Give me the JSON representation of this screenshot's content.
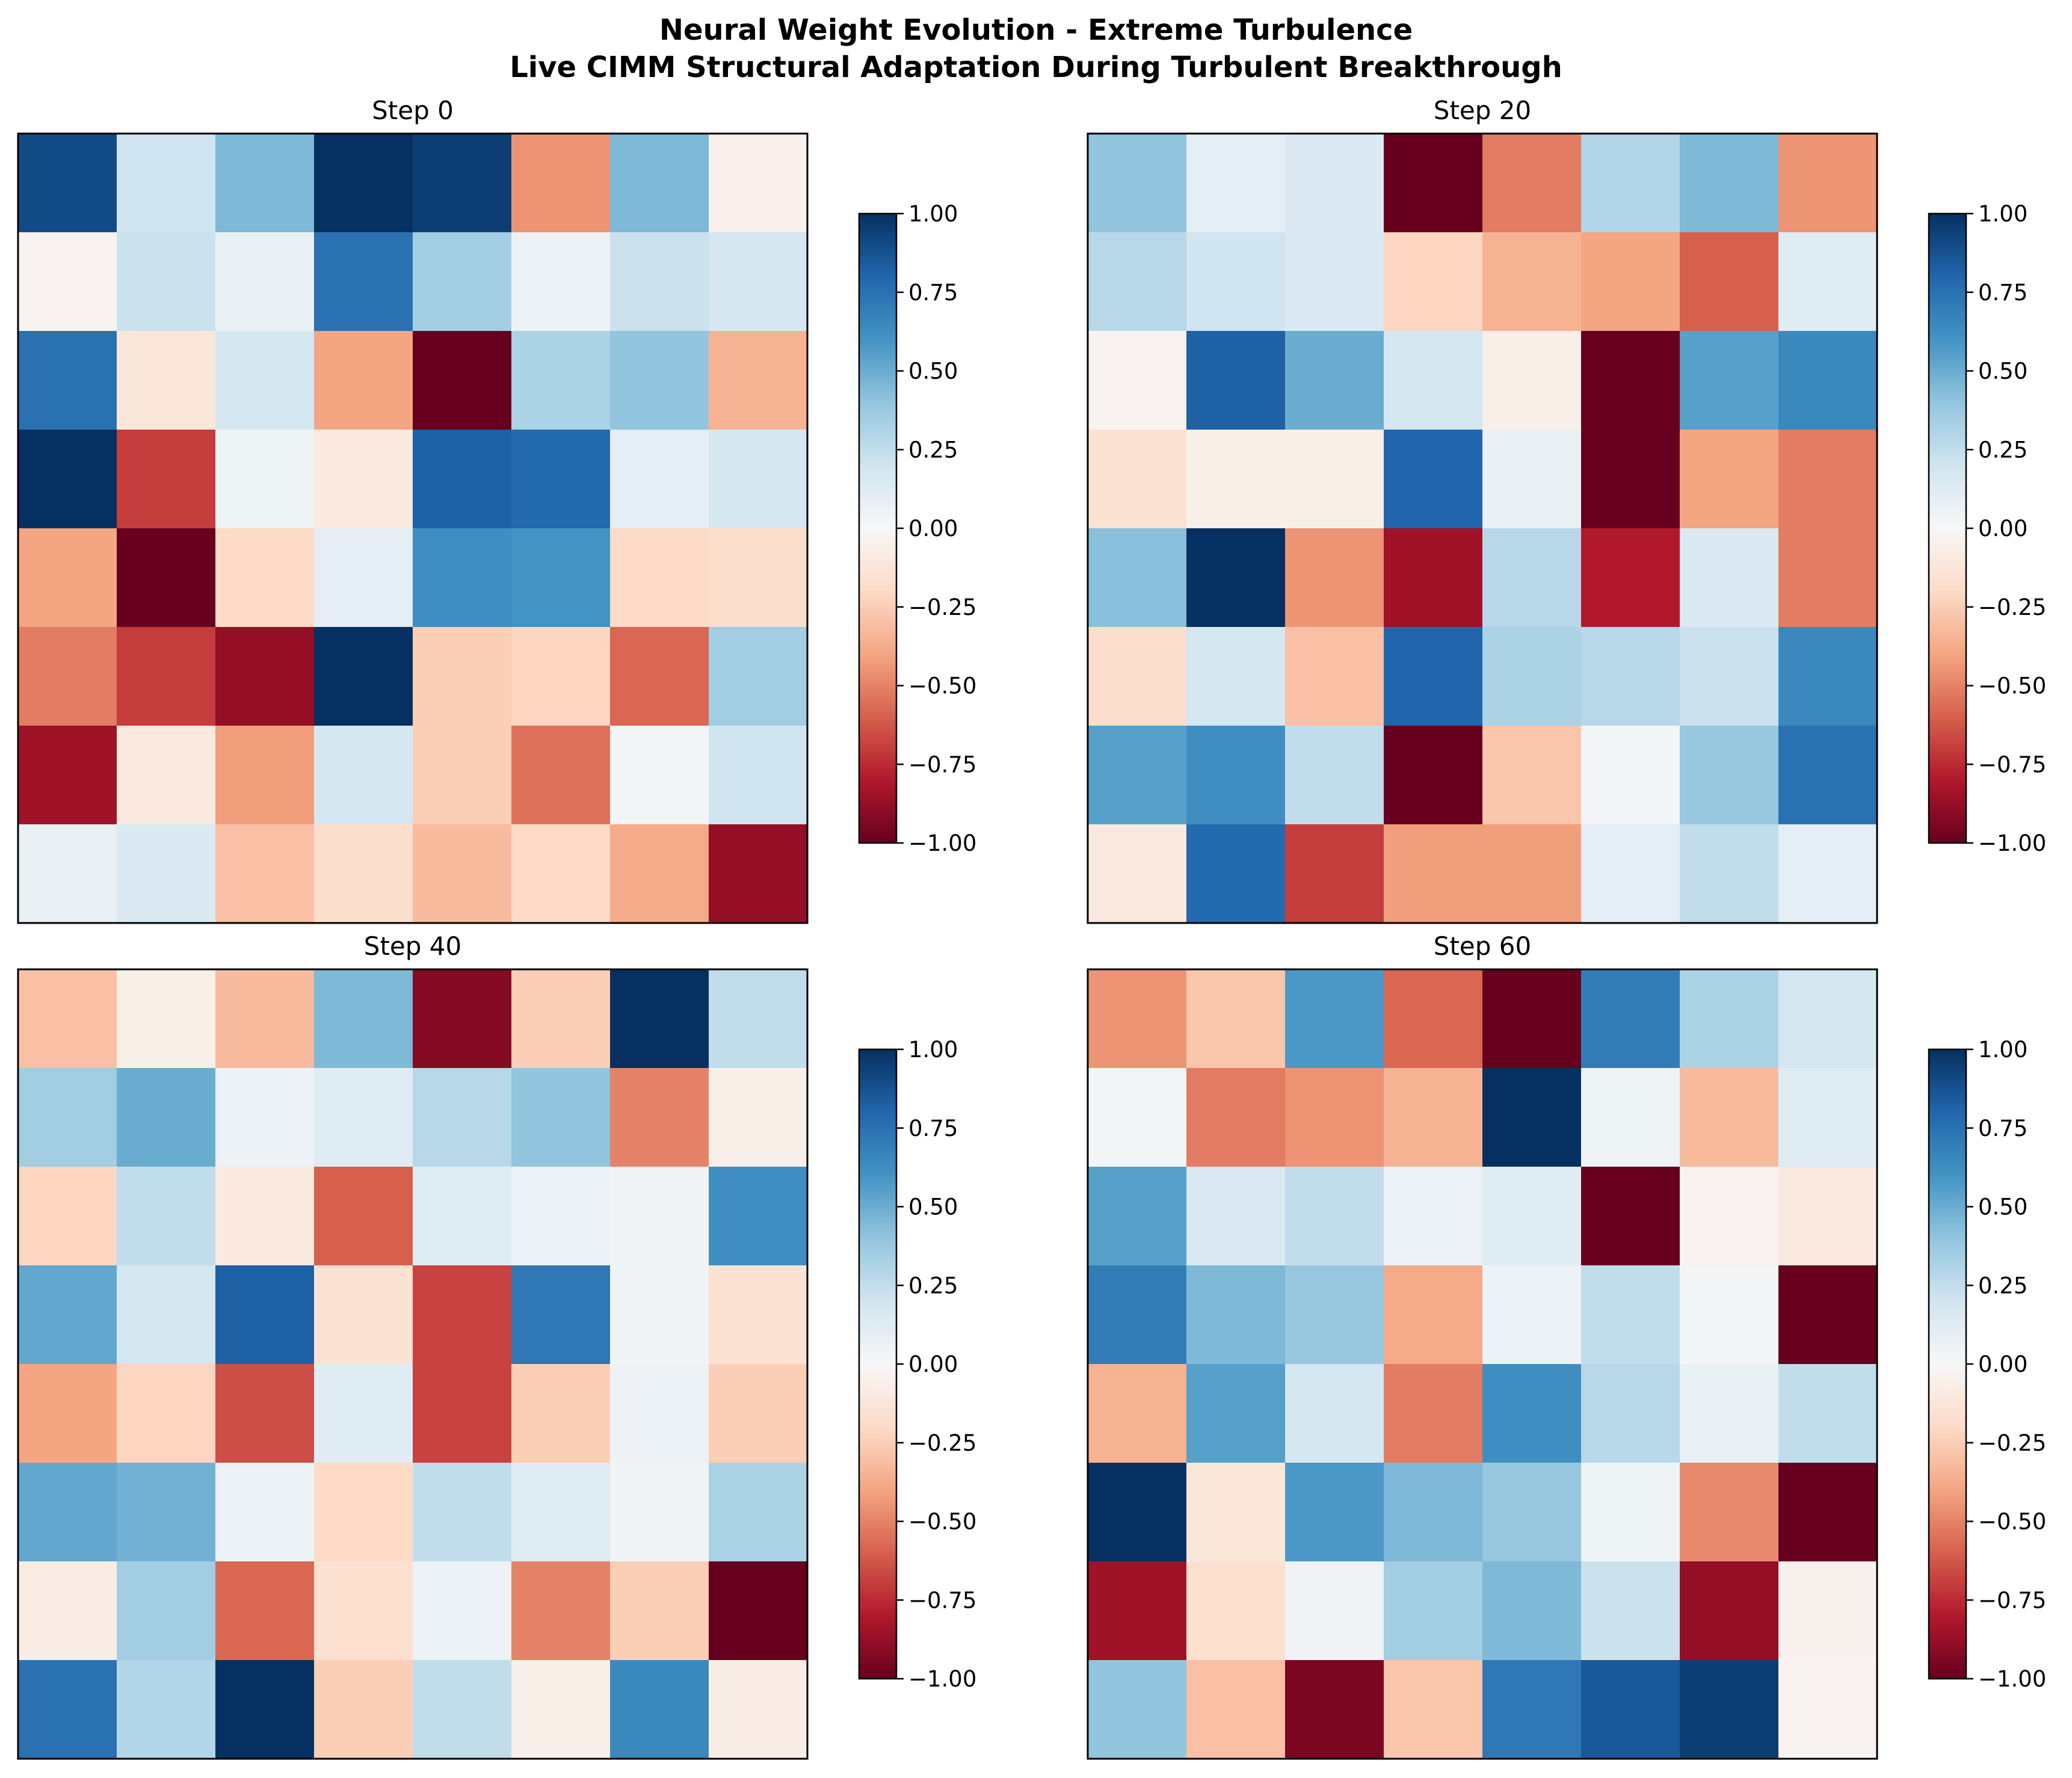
{
  "figure": {
    "title_line1": "Neural Weight Evolution - Extreme Turbulence",
    "title_line2": "Live CIMM Structural Adaptation During Turbulent Breakthrough"
  },
  "colormap": {
    "name": "RdBu",
    "stops": [
      "#67001f",
      "#b2182b",
      "#d6604d",
      "#f4a582",
      "#fddbc7",
      "#f7f7f7",
      "#d1e5f0",
      "#92c5de",
      "#4393c3",
      "#2166ac",
      "#053061"
    ]
  },
  "chart_data": [
    {
      "type": "heatmap",
      "title": "Step 0",
      "vmin": -1,
      "vmax": 1,
      "colorbar_ticks": [
        "1.00",
        "0.75",
        "0.50",
        "0.25",
        "0.00",
        "−0.25",
        "−0.50",
        "−0.75",
        "−1.00"
      ],
      "values": [
        [
          0.9,
          0.2,
          0.45,
          1.0,
          0.95,
          -0.45,
          0.45,
          -0.05
        ],
        [
          -0.03,
          0.22,
          0.08,
          0.75,
          0.35,
          0.06,
          0.22,
          0.18
        ],
        [
          0.75,
          -0.12,
          0.18,
          -0.4,
          -1.0,
          0.32,
          0.4,
          -0.35
        ],
        [
          1.0,
          -0.7,
          0.05,
          -0.1,
          0.82,
          0.78,
          0.1,
          0.18
        ],
        [
          -0.4,
          -1.0,
          -0.2,
          0.1,
          0.62,
          0.6,
          -0.2,
          -0.18
        ],
        [
          -0.52,
          -0.7,
          -0.88,
          1.0,
          -0.25,
          -0.22,
          -0.58,
          0.35
        ],
        [
          -0.85,
          -0.1,
          -0.42,
          0.18,
          -0.25,
          -0.55,
          0.02,
          0.2
        ],
        [
          0.08,
          0.15,
          -0.3,
          -0.18,
          -0.32,
          -0.2,
          -0.38,
          -0.88
        ]
      ]
    },
    {
      "type": "heatmap",
      "title": "Step 20",
      "vmin": -1,
      "vmax": 1,
      "colorbar_ticks": [
        "1.00",
        "0.75",
        "0.50",
        "0.25",
        "0.00",
        "−0.25",
        "−0.50",
        "−0.75",
        "−1.00"
      ],
      "values": [
        [
          0.4,
          0.1,
          0.15,
          -1.0,
          -0.52,
          0.3,
          0.45,
          -0.45
        ],
        [
          0.28,
          0.2,
          0.15,
          -0.22,
          -0.35,
          -0.4,
          -0.6,
          0.12
        ],
        [
          -0.03,
          0.82,
          0.5,
          0.18,
          -0.06,
          -1.0,
          0.55,
          0.65
        ],
        [
          -0.15,
          -0.06,
          -0.06,
          0.8,
          0.08,
          -1.0,
          -0.4,
          -0.52
        ],
        [
          0.42,
          1.0,
          -0.45,
          -0.85,
          0.28,
          -0.8,
          0.15,
          -0.52
        ],
        [
          -0.18,
          0.18,
          -0.3,
          0.8,
          0.32,
          0.28,
          0.22,
          0.65
        ],
        [
          0.55,
          0.62,
          0.25,
          -1.0,
          -0.28,
          0.02,
          0.38,
          0.75
        ],
        [
          -0.1,
          0.78,
          -0.7,
          -0.42,
          -0.42,
          0.1,
          0.25,
          0.1
        ]
      ]
    },
    {
      "type": "heatmap",
      "title": "Step 40",
      "vmin": -1,
      "vmax": 1,
      "colorbar_ticks": [
        "1.00",
        "0.75",
        "0.50",
        "0.25",
        "0.00",
        "−0.25",
        "−0.50",
        "−0.75",
        "−1.00"
      ],
      "values": [
        [
          -0.3,
          -0.06,
          -0.32,
          0.45,
          -0.92,
          -0.25,
          1.0,
          0.25
        ],
        [
          0.35,
          0.5,
          0.06,
          0.12,
          0.28,
          0.4,
          -0.5,
          -0.06
        ],
        [
          -0.22,
          0.25,
          -0.1,
          -0.6,
          0.12,
          0.06,
          0.03,
          0.62
        ],
        [
          0.52,
          0.18,
          0.82,
          -0.15,
          -0.68,
          0.72,
          0.03,
          -0.15
        ],
        [
          -0.4,
          -0.22,
          -0.65,
          0.12,
          -0.68,
          -0.25,
          0.06,
          -0.25
        ],
        [
          0.52,
          0.48,
          0.06,
          -0.2,
          0.25,
          0.12,
          0.03,
          0.32
        ],
        [
          -0.08,
          0.35,
          -0.58,
          -0.16,
          0.06,
          -0.5,
          -0.25,
          -1.0
        ],
        [
          0.75,
          0.3,
          1.0,
          -0.25,
          0.25,
          -0.06,
          0.65,
          -0.08
        ]
      ]
    },
    {
      "type": "heatmap",
      "title": "Step 60",
      "vmin": -1,
      "vmax": 1,
      "colorbar_ticks": [
        "1.00",
        "0.75",
        "0.50",
        "0.25",
        "0.00",
        "−0.25",
        "−0.50",
        "−0.75",
        "−1.00"
      ],
      "values": [
        [
          -0.45,
          -0.28,
          0.58,
          -0.58,
          -1.0,
          0.7,
          0.32,
          0.18
        ],
        [
          0.02,
          -0.52,
          -0.45,
          -0.35,
          1.0,
          0.05,
          -0.32,
          0.12
        ],
        [
          0.55,
          0.15,
          0.25,
          0.06,
          0.12,
          -1.0,
          -0.03,
          -0.1
        ],
        [
          0.7,
          0.45,
          0.38,
          -0.38,
          0.06,
          0.25,
          0.02,
          -1.0
        ],
        [
          -0.35,
          0.55,
          0.18,
          -0.52,
          0.62,
          0.28,
          0.08,
          0.25
        ],
        [
          1.0,
          -0.12,
          0.58,
          0.45,
          0.38,
          0.05,
          -0.48,
          -1.0
        ],
        [
          -0.85,
          -0.16,
          0.04,
          0.35,
          0.45,
          0.22,
          -0.88,
          -0.04
        ],
        [
          0.4,
          -0.3,
          -0.95,
          -0.28,
          0.72,
          0.85,
          0.95,
          -0.03
        ]
      ]
    }
  ]
}
